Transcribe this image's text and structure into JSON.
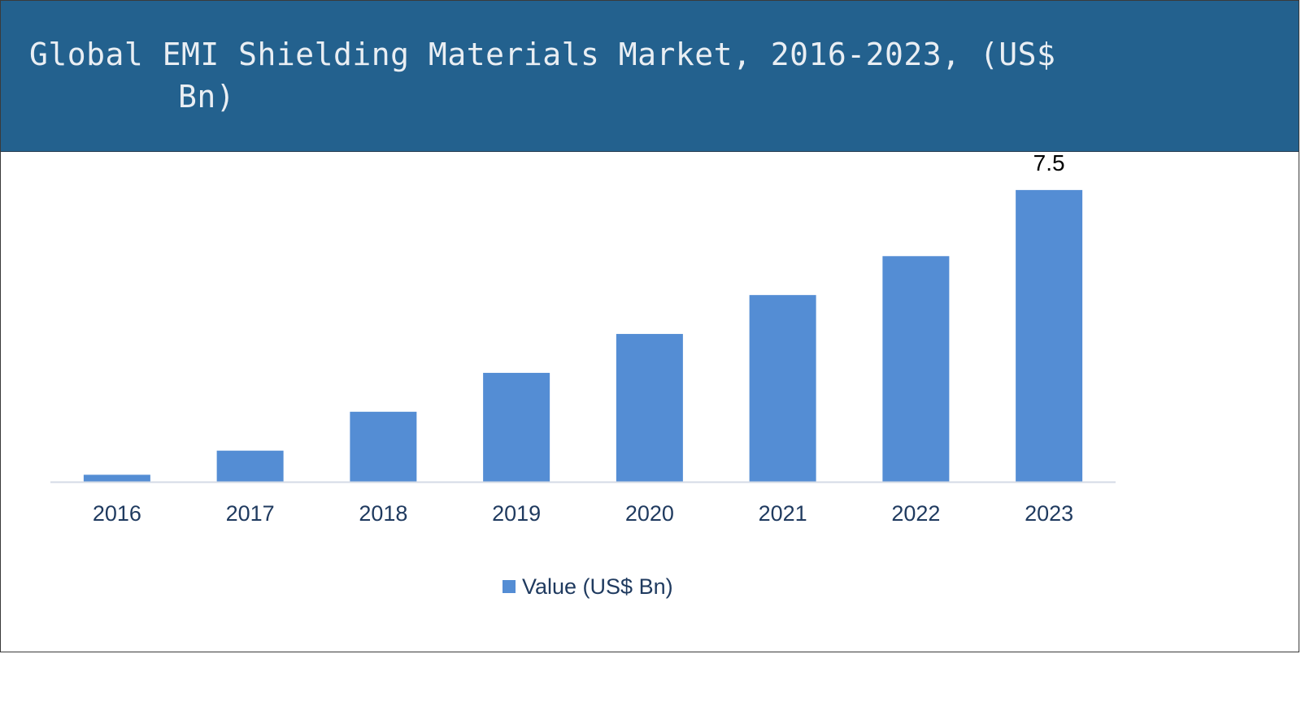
{
  "header": {
    "title_line1": "Global EMI Shielding Materials Market, 2016-2023, (US$",
    "title_line2": "Bn)"
  },
  "colors": {
    "header_bg": "#23618e",
    "bar": "#548dd4",
    "axis_label": "#1f3a5f",
    "data_label": "#000000"
  },
  "chart_data": {
    "type": "bar",
    "title": "Global EMI Shielding Materials Market, 2016-2023, (US$ Bn)",
    "categories": [
      "2016",
      "2017",
      "2018",
      "2019",
      "2020",
      "2021",
      "2022",
      "2023"
    ],
    "series": [
      {
        "name": "Value (US$ Bn)",
        "values": [
          0.18,
          0.8,
          1.8,
          2.8,
          3.8,
          4.8,
          5.8,
          7.5
        ]
      }
    ],
    "data_labels": [
      "",
      "",
      "",
      "",
      "",
      "",
      "",
      "7.5"
    ],
    "ylim": [
      0,
      8.5
    ],
    "grid": false,
    "legend_position": "bottom-center"
  }
}
